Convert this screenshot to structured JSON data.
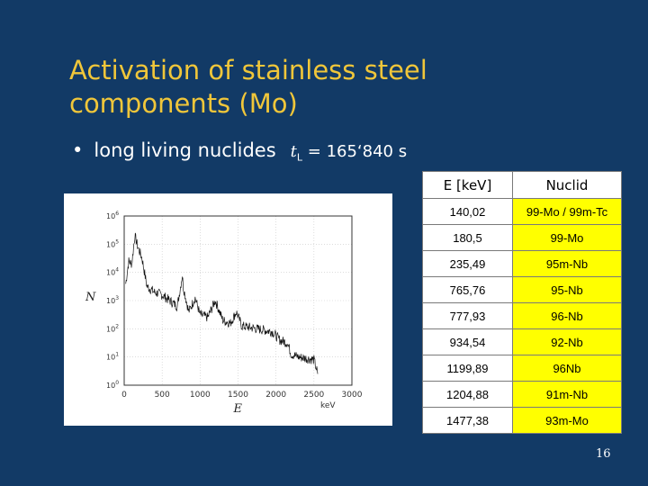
{
  "slide": {
    "title": "Activation of stainless steel\ncomponents (Mo)",
    "bullet": {
      "symbol": "•",
      "text": "long living nuclides",
      "formula_var": "t",
      "formula_sub": "L",
      "formula_rest": " = 165‘840 s"
    },
    "page_number": "16"
  },
  "table": {
    "headers": [
      "E [keV]",
      "Nuclid"
    ],
    "rows": [
      {
        "energy": "140,02",
        "nuclide": "99-Mo / 99m-Tc",
        "highlight": true
      },
      {
        "energy": "180,5",
        "nuclide": "99-Mo",
        "highlight": true
      },
      {
        "energy": "235,49",
        "nuclide": "95m-Nb",
        "highlight": true
      },
      {
        "energy": "765,76",
        "nuclide": "95-Nb",
        "highlight": true
      },
      {
        "energy": "777,93",
        "nuclide": "96-Nb",
        "highlight": true
      },
      {
        "energy": "934,54",
        "nuclide": "92-Nb",
        "highlight": true
      },
      {
        "energy": "1199,89",
        "nuclide": "96Nb",
        "highlight": true
      },
      {
        "energy": "1204,88",
        "nuclide": "91m-Nb",
        "highlight": true
      },
      {
        "energy": "1477,38",
        "nuclide": "93m-Mo",
        "highlight": true
      }
    ],
    "highlight_color": "#ffff00"
  },
  "chart_data": {
    "type": "line",
    "xlabel": "E",
    "xunit": "keV",
    "ylabel": "N",
    "xlim": [
      0,
      3000
    ],
    "ylim_log10": [
      0,
      6
    ],
    "y_scale": "log",
    "x_ticks": [
      "0",
      "500",
      "1000",
      "1500",
      "2000",
      "2500",
      "3000"
    ],
    "y_ticks": [
      {
        "base": "10",
        "exp": "0"
      },
      {
        "base": "10",
        "exp": "1"
      },
      {
        "base": "10",
        "exp": "2"
      },
      {
        "base": "10",
        "exp": "3"
      },
      {
        "base": "10",
        "exp": "4"
      },
      {
        "base": "10",
        "exp": "5"
      },
      {
        "base": "10",
        "exp": "6"
      }
    ],
    "grid": true,
    "series": [
      {
        "x": [
          20,
          60,
          100,
          140,
          180,
          235,
          300,
          400,
          500,
          600,
          700,
          766,
          778,
          850,
          934,
          1000,
          1100,
          1200,
          1300,
          1400,
          1477,
          1550,
          1650,
          1750,
          1850,
          1950,
          2050,
          2150,
          2200,
          2300,
          2400,
          2500,
          2550
        ],
        "log10_y": [
          3.6,
          4.4,
          4.3,
          5.3,
          4.9,
          4.5,
          3.5,
          3.3,
          3.2,
          3.0,
          2.8,
          3.9,
          3.5,
          2.6,
          3.1,
          2.5,
          2.4,
          3.0,
          2.3,
          2.2,
          2.6,
          2.1,
          2.05,
          2.0,
          1.95,
          1.9,
          1.6,
          1.5,
          1.1,
          1.0,
          0.95,
          0.9,
          0.4
        ]
      }
    ]
  }
}
